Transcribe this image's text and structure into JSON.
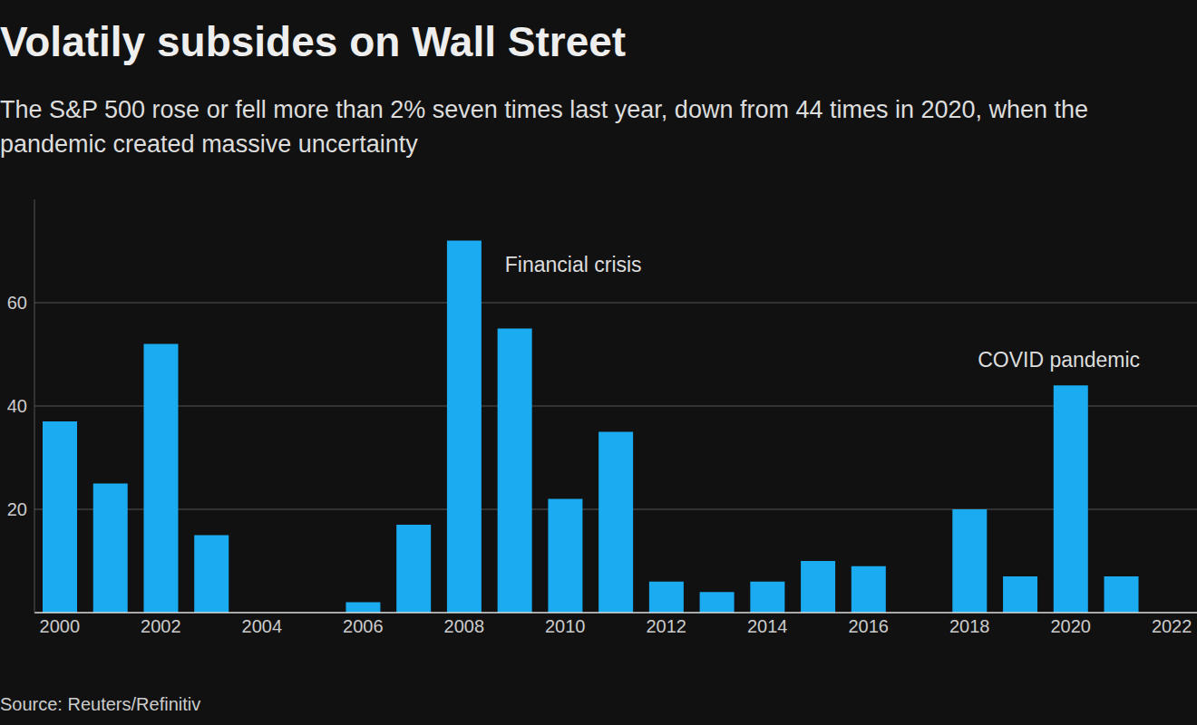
{
  "chart_data": {
    "type": "bar",
    "title": "Volatily subsides on Wall Street",
    "subtitle": "The S&P 500 rose or fell more than 2% seven times last year, down from 44 times in 2020, when the pandemic created massive uncertainty",
    "source": "Source: Reuters/Refinitiv",
    "x": [
      2000,
      2001,
      2002,
      2003,
      2004,
      2005,
      2006,
      2007,
      2008,
      2009,
      2010,
      2011,
      2012,
      2013,
      2014,
      2015,
      2016,
      2017,
      2018,
      2019,
      2020,
      2021
    ],
    "values": [
      37,
      25,
      52,
      15,
      0,
      0,
      2,
      17,
      72,
      55,
      22,
      35,
      6,
      4,
      6,
      10,
      9,
      0,
      20,
      7,
      44,
      7
    ],
    "color": "#1aabf0",
    "xlim": [
      1999.5,
      2022.5
    ],
    "xticks": [
      2000,
      2002,
      2004,
      2006,
      2008,
      2010,
      2012,
      2014,
      2016,
      2018,
      2020,
      2022
    ],
    "ylim": [
      0,
      80
    ],
    "yticks": [
      20,
      40,
      60
    ],
    "grid": true,
    "annotations": [
      {
        "text": "Financial crisis",
        "x": 2008
      },
      {
        "text": "COVID pandemic",
        "x": 2020
      }
    ]
  }
}
